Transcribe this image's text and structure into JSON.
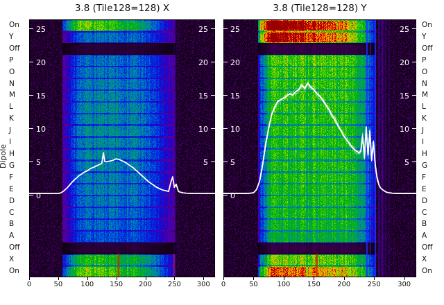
{
  "figure": {
    "background": "#ffffff",
    "text_color": "#111111",
    "line_color": "#ffffff"
  },
  "axes": {
    "dipole_label": "Dipole",
    "x_tick_values": [
      0,
      50,
      100,
      150,
      200,
      250,
      300
    ]
  },
  "colormap": [
    [
      0.0,
      "#000000"
    ],
    [
      0.06,
      "#3a0050"
    ],
    [
      0.12,
      "#5a00a0"
    ],
    [
      0.18,
      "#2000c8"
    ],
    [
      0.24,
      "#0028e0"
    ],
    [
      0.3,
      "#0060d8"
    ],
    [
      0.36,
      "#00958f"
    ],
    [
      0.42,
      "#00a055"
    ],
    [
      0.5,
      "#00b400"
    ],
    [
      0.58,
      "#40d000"
    ],
    [
      0.66,
      "#b0d800"
    ],
    [
      0.74,
      "#ffb000"
    ],
    [
      0.82,
      "#ff5500"
    ],
    [
      0.9,
      "#e60000"
    ],
    [
      1.0,
      "#990000"
    ]
  ],
  "chart_data": [
    {
      "type": "heatmap",
      "title": "3.8 (Tile128=128) X",
      "x_range": [
        0,
        320
      ],
      "x_ticks": [
        0,
        50,
        100,
        150,
        200,
        250,
        300
      ],
      "inner_value_ticks": [
        25,
        20,
        15,
        10,
        5,
        0
      ],
      "rows": [
        "On",
        "Y",
        "Off",
        "P",
        "O",
        "N",
        "M",
        "L",
        "K",
        "J",
        "I",
        "H",
        "G",
        "F",
        "E",
        "D",
        "C",
        "B",
        "A",
        "Off",
        "X",
        "On"
      ],
      "row_levels": [
        0.55,
        0.3,
        0.04,
        0.3,
        0.31,
        0.32,
        0.33,
        0.34,
        0.34,
        0.35,
        0.34,
        0.34,
        0.33,
        0.32,
        0.32,
        0.31,
        0.3,
        0.29,
        0.27,
        0.04,
        0.5,
        0.58
      ],
      "row_gradients": {
        "0": [
          1.2,
          0.6
        ],
        "20": [
          1.05,
          0.8
        ],
        "21": [
          1.1,
          0.7
        ]
      },
      "band": {
        "start": 57,
        "end": 252,
        "edge_left": 40,
        "edge_right": 70
      },
      "stripes": [
        {
          "x": 249,
          "w": 1,
          "color": "#3a00b0",
          "alpha": 0.55
        },
        {
          "x": 257,
          "w": 1,
          "color": "#28008c",
          "alpha": 0.45
        },
        {
          "x": 152,
          "w": 3,
          "color": "#cc2200",
          "alpha": 0.7,
          "row_start": 20,
          "row_end": 22
        },
        {
          "x": 248,
          "w": 2,
          "color": "#cc3300",
          "alpha": 0.55,
          "row_start": 20,
          "row_end": 22
        }
      ],
      "line": {
        "fuzz": 1.5,
        "x": [
          0,
          10,
          20,
          30,
          40,
          50,
          55,
          60,
          65,
          70,
          75,
          80,
          85,
          90,
          95,
          100,
          105,
          110,
          115,
          120,
          125,
          128,
          130,
          135,
          140,
          145,
          150,
          155,
          160,
          165,
          170,
          175,
          180,
          185,
          190,
          195,
          200,
          205,
          210,
          215,
          220,
          225,
          230,
          235,
          240,
          244,
          247,
          250,
          253,
          257,
          260,
          265,
          270,
          280,
          290,
          300,
          310,
          320
        ],
        "y": [
          0.2,
          0.2,
          0.2,
          0.2,
          0.2,
          0.2,
          0.3,
          0.6,
          1.0,
          1.5,
          2.0,
          2.4,
          2.8,
          3.1,
          3.4,
          3.6,
          3.9,
          4.1,
          4.3,
          4.5,
          4.7,
          6.3,
          5.0,
          5.0,
          5.1,
          5.2,
          5.4,
          5.3,
          5.1,
          4.9,
          4.6,
          4.3,
          4.0,
          3.6,
          3.2,
          2.8,
          2.4,
          2.0,
          1.7,
          1.4,
          1.1,
          0.9,
          0.7,
          0.6,
          0.5,
          1.9,
          2.7,
          1.1,
          1.6,
          0.5,
          0.4,
          0.3,
          0.25,
          0.2,
          0.2,
          0.2,
          0.2,
          0.2
        ]
      }
    },
    {
      "type": "heatmap",
      "title": "3.8 (Tile128=128) Y",
      "x_range": [
        0,
        320
      ],
      "x_ticks": [
        0,
        50,
        100,
        150,
        200,
        250,
        300
      ],
      "inner_value_ticks": [
        25,
        20,
        15,
        10,
        5,
        0
      ],
      "rows": [
        "On",
        "Y",
        "Off",
        "P",
        "O",
        "N",
        "M",
        "L",
        "K",
        "J",
        "I",
        "H",
        "G",
        "F",
        "E",
        "D",
        "C",
        "B",
        "A",
        "Off",
        "X",
        "On"
      ],
      "row_levels": [
        1.0,
        0.92,
        0.05,
        0.55,
        0.53,
        0.52,
        0.52,
        0.51,
        0.51,
        0.51,
        0.5,
        0.5,
        0.5,
        0.5,
        0.49,
        0.49,
        0.48,
        0.47,
        0.44,
        0.05,
        0.62,
        0.8
      ],
      "row_gradients": {
        "0": [
          1.3,
          0.55
        ],
        "1": [
          1.25,
          0.6
        ],
        "20": [
          1.0,
          0.85
        ],
        "21": [
          1.1,
          0.75
        ]
      },
      "band": {
        "start": 58,
        "end": 253,
        "edge_left": 25,
        "edge_right": 40
      },
      "stripes": [
        {
          "x": 153,
          "w": 3,
          "color": "#e02000",
          "alpha": 0.8,
          "row_start": 20,
          "row_end": 22
        },
        {
          "x": 237,
          "w": 2,
          "color": "#1a35ff",
          "alpha": 0.85
        },
        {
          "x": 243,
          "w": 1,
          "color": "#2a45ff",
          "alpha": 0.7
        },
        {
          "x": 251,
          "w": 2,
          "color": "#1a35ff",
          "alpha": 0.8
        },
        {
          "x": 257,
          "w": 2,
          "color": "#4a00cc",
          "alpha": 0.6
        },
        {
          "x": 262,
          "w": 3,
          "color": "#5500bb",
          "alpha": 0.55
        },
        {
          "x": 268,
          "w": 2,
          "color": "#44009a",
          "alpha": 0.5
        },
        {
          "x": 274,
          "w": 2,
          "color": "#330080",
          "alpha": 0.45
        }
      ],
      "line": {
        "fuzz": 5,
        "x": [
          0,
          10,
          20,
          30,
          40,
          50,
          55,
          60,
          65,
          70,
          75,
          80,
          85,
          90,
          95,
          100,
          105,
          110,
          115,
          120,
          125,
          130,
          135,
          140,
          145,
          150,
          155,
          160,
          165,
          170,
          175,
          180,
          185,
          190,
          195,
          200,
          205,
          210,
          215,
          220,
          225,
          228,
          231,
          234,
          237,
          240,
          243,
          246,
          249,
          252,
          255,
          258,
          261,
          265,
          270,
          275,
          280,
          290,
          300,
          310,
          320
        ],
        "y": [
          0.2,
          0.2,
          0.2,
          0.2,
          0.2,
          0.3,
          0.8,
          2.0,
          4.5,
          7.5,
          10.0,
          12.0,
          13.2,
          14.0,
          14.3,
          14.5,
          14.8,
          15.2,
          15.0,
          15.5,
          15.8,
          16.5,
          16.0,
          16.8,
          16.2,
          15.8,
          15.2,
          14.8,
          14.2,
          13.5,
          12.8,
          12.0,
          11.2,
          10.4,
          9.6,
          8.8,
          8.2,
          7.6,
          7.0,
          6.6,
          6.3,
          6.5,
          8.8,
          5.6,
          10.2,
          6.0,
          9.6,
          5.2,
          8.0,
          4.5,
          2.6,
          1.5,
          1.0,
          0.7,
          0.4,
          0.3,
          0.25,
          0.2,
          0.2,
          0.2,
          0.2
        ]
      }
    }
  ]
}
